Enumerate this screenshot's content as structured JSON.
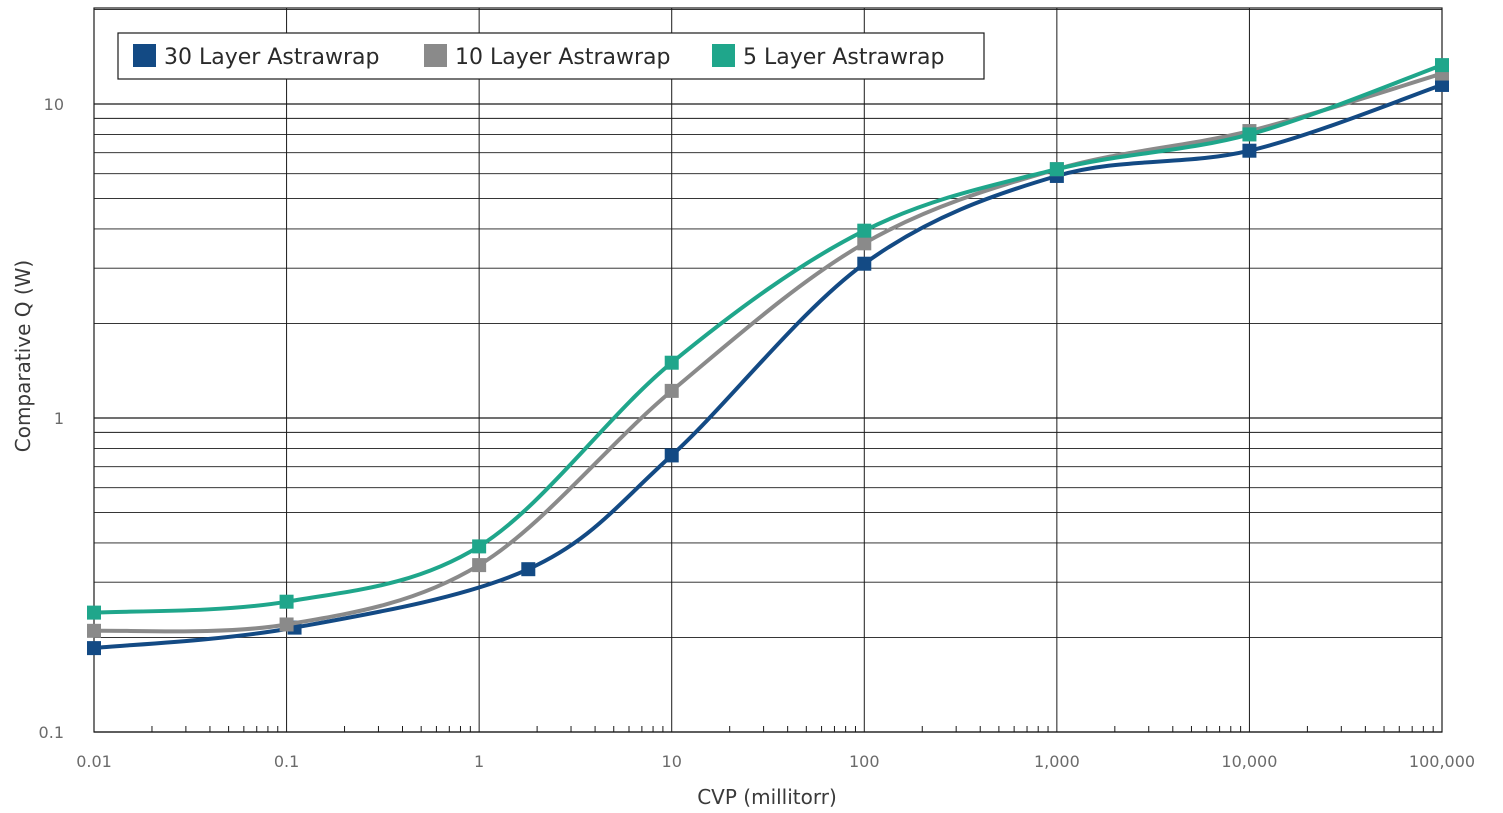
{
  "chart_data": {
    "type": "line",
    "xlabel": "CVP (millitorr)",
    "ylabel": "Comparative Q (W)",
    "x_scale": "log",
    "y_scale": "log",
    "xlim": [
      0.01,
      100000
    ],
    "ylim": [
      0.1,
      20
    ],
    "grid": true,
    "legend_position": "top-left",
    "x_tick_labels": [
      "0.01",
      "0.1",
      "1",
      "10",
      "100",
      "1,000",
      "10,000",
      "100,000"
    ],
    "y_tick_labels": [
      "0.1",
      "1",
      "10"
    ],
    "series": [
      {
        "name": "30 Layer Astrawrap",
        "color": "#134a84",
        "x": [
          0.01,
          0.11,
          1.8,
          10,
          100,
          1000,
          10000,
          100000
        ],
        "y": [
          0.185,
          0.215,
          0.33,
          0.76,
          3.1,
          5.9,
          7.1,
          11.5
        ]
      },
      {
        "name": "10 Layer Astrawrap",
        "color": "#8a8a8a",
        "x": [
          0.01,
          0.1,
          1,
          10,
          100,
          1000,
          10000,
          100000
        ],
        "y": [
          0.21,
          0.22,
          0.34,
          1.22,
          3.6,
          6.2,
          8.2,
          12.5
        ]
      },
      {
        "name": "5 Layer Astrawrap",
        "color": "#1fa68b",
        "x": [
          0.01,
          0.1,
          1,
          10,
          100,
          1000,
          10000,
          100000
        ],
        "y": [
          0.24,
          0.26,
          0.39,
          1.5,
          3.95,
          6.2,
          8.0,
          13.3
        ]
      }
    ]
  }
}
